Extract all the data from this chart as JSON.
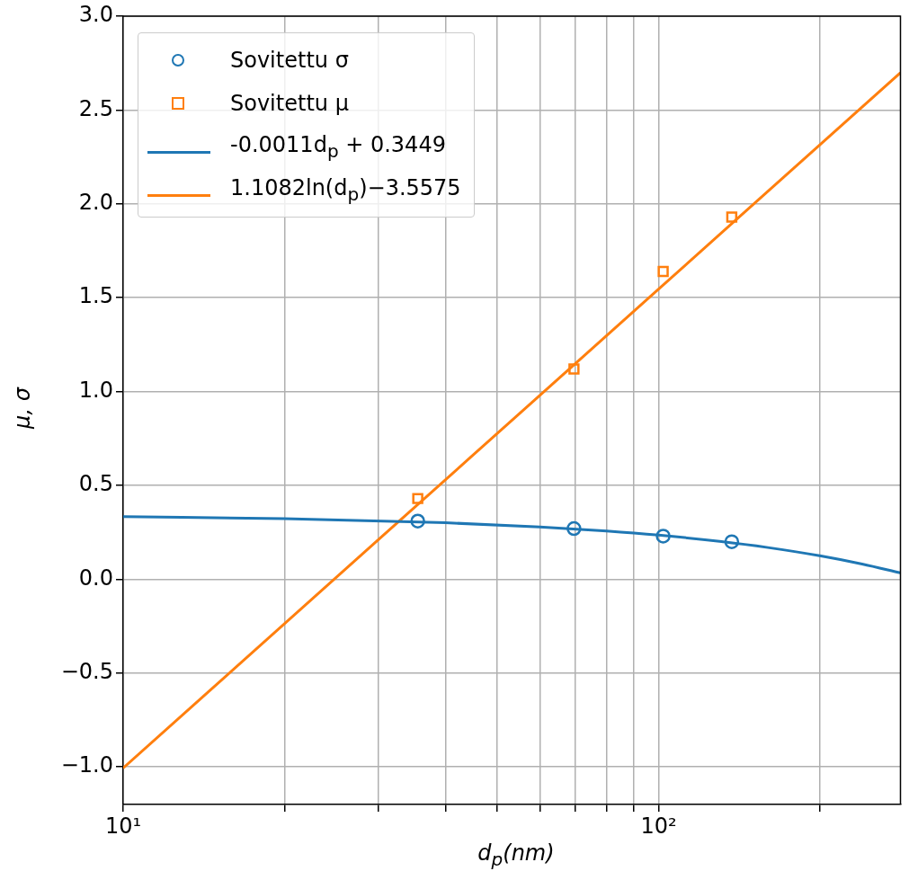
{
  "chart_data": {
    "type": "scatter",
    "xlabel": "d$_{p}$(nm)",
    "ylabel": "μ, σ",
    "log": "x",
    "grid": true,
    "legend": "top left",
    "xlim": [
      10,
      283
    ],
    "ylim": [
      -1.2,
      3.0
    ],
    "xticks": [
      {
        "value": 10,
        "label": "10¹"
      },
      {
        "value": 20,
        "label": null
      },
      {
        "value": 30,
        "label": null
      },
      {
        "value": 40,
        "label": null
      },
      {
        "value": 50,
        "label": null
      },
      {
        "value": 60,
        "label": null
      },
      {
        "value": 70,
        "label": null
      },
      {
        "value": 80,
        "label": null
      },
      {
        "value": 90,
        "label": null
      },
      {
        "value": 100,
        "label": "10²"
      },
      {
        "value": 200,
        "label": null
      }
    ],
    "yticks": [
      {
        "value": -1.0,
        "label": "−1.0"
      },
      {
        "value": -0.5,
        "label": "−0.5"
      },
      {
        "value": 0.0,
        "label": "0.0"
      },
      {
        "value": 0.5,
        "label": "0.5"
      },
      {
        "value": 1.0,
        "label": "1.0"
      },
      {
        "value": 1.5,
        "label": "1.5"
      },
      {
        "value": 2.0,
        "label": "2.0"
      },
      {
        "value": 2.5,
        "label": "2.5"
      },
      {
        "value": 3.0,
        "label": "3.0"
      }
    ],
    "series": [
      {
        "name": "Sovitettu σ",
        "marker": "circle",
        "color": "#1f77b4",
        "x": [
          35.5,
          69.5,
          102,
          137
        ],
        "values": [
          0.31,
          0.27,
          0.23,
          0.2
        ]
      },
      {
        "name": "Sovitettu μ",
        "marker": "square",
        "color": "#ff7f0e",
        "x": [
          35.5,
          69.5,
          102,
          137
        ],
        "values": [
          0.43,
          1.12,
          1.64,
          1.93
        ]
      },
      {
        "name": "-0.0011d$_{p}$ + 0.3449",
        "type": "line",
        "marker": "none",
        "line_style": "solid",
        "color": "#1f77b4",
        "x": [
          10,
          20,
          40,
          60,
          80,
          100,
          130,
          160,
          200,
          240,
          283
        ],
        "values": [
          0.334,
          0.323,
          0.301,
          0.279,
          0.257,
          0.235,
          0.202,
          0.169,
          0.125,
          0.081,
          0.034
        ]
      },
      {
        "name": "1.1082ln(d$_{p}$)−3.5575",
        "type": "line",
        "marker": "none",
        "line_style": "solid",
        "color": "#ff7f0e",
        "x": [
          10,
          30,
          100,
          283
        ],
        "values": [
          -1.006,
          0.212,
          1.546,
          2.699
        ]
      }
    ]
  }
}
